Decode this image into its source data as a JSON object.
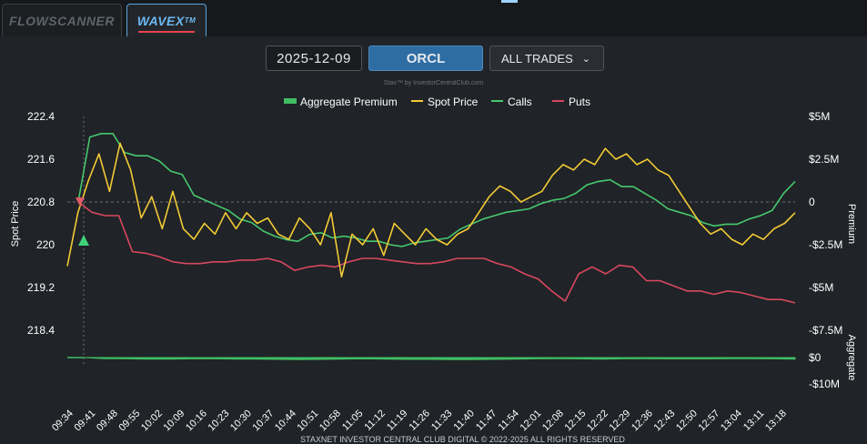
{
  "tabs": [
    {
      "label": "FLOWSCANNER",
      "active": false
    },
    {
      "label": "WAVEX",
      "sup": "TM",
      "active": true
    }
  ],
  "controls": {
    "date": "2025-12-09",
    "ticker": "ORCL",
    "trade_filter": "ALL TRADES"
  },
  "credit": "Stax™ by InvestorCentralClub.com",
  "footer": "STAXNET INVESTOR CENTRAL CLUB DIGITAL © 2022-2025 ALL RIGHTS RESERVED",
  "colors": {
    "aggregate": "#3fbe63",
    "spot": "#f2cb35",
    "calls": "#47c86e",
    "puts": "#d8485f",
    "grid_zero": "#6b7077"
  },
  "chart_data": {
    "type": "line",
    "legend": [
      "Aggregate Premium",
      "Spot Price",
      "Calls",
      "Puts"
    ],
    "left_axis": {
      "label": "Spot Price",
      "ticks": [
        "222.4",
        "221.6",
        "220.8",
        "220",
        "219.2",
        "218.4"
      ],
      "ylim": [
        218.4,
        222.4
      ]
    },
    "right_axis_premium": {
      "label": "Premium",
      "ticks": [
        "$5M",
        "$2.5M",
        "0",
        "-$2.5M",
        "-$5M",
        "-$7.5M"
      ],
      "ylim": [
        -7.5,
        5
      ]
    },
    "right_axis_aggregate": {
      "label": "Aggregate",
      "ticks": [
        "$0",
        "-$10M"
      ],
      "ylim": [
        -10,
        0
      ]
    },
    "x_ticks": [
      "09:34",
      "09:41",
      "09:48",
      "09:55",
      "10:02",
      "10:09",
      "10:16",
      "10:23",
      "10:30",
      "10:37",
      "10:44",
      "10:51",
      "10:58",
      "11:05",
      "11:12",
      "11:19",
      "11:26",
      "11:33",
      "11:40",
      "11:47",
      "11:54",
      "12:01",
      "12:08",
      "12:15",
      "12:22",
      "12:29",
      "12:36",
      "12:43",
      "12:50",
      "12:57",
      "13:04",
      "13:11",
      "13:18"
    ],
    "spot_price": [
      219.6,
      220.6,
      221.2,
      221.7,
      221.0,
      221.9,
      221.4,
      220.5,
      220.9,
      220.3,
      221.0,
      220.3,
      220.1,
      220.4,
      220.2,
      220.6,
      220.3,
      220.6,
      220.4,
      220.5,
      220.2,
      220.1,
      220.5,
      220.3,
      220.0,
      220.6,
      219.4,
      220.2,
      220.0,
      220.3,
      219.8,
      220.4,
      220.2,
      220.0,
      220.3,
      220.1,
      220.0,
      220.2,
      220.3,
      220.6,
      220.9,
      221.1,
      221.0,
      220.8,
      220.9,
      221.0,
      221.3,
      221.5,
      221.4,
      221.6,
      221.5,
      221.8,
      221.6,
      221.7,
      221.5,
      221.6,
      221.4,
      221.3,
      221.0,
      220.7,
      220.4,
      220.2,
      220.3,
      220.1,
      220.0,
      220.2,
      220.1,
      220.3,
      220.4,
      220.6
    ],
    "calls_premium": [
      0,
      3.8,
      4.0,
      4.0,
      2.9,
      2.7,
      2.7,
      2.4,
      1.8,
      1.6,
      0.4,
      0.1,
      -0.2,
      -0.5,
      -1.0,
      -1.2,
      -1.7,
      -2.0,
      -2.2,
      -2.3,
      -1.9,
      -1.8,
      -2.1,
      -2.0,
      -2.1,
      -2.3,
      -2.3,
      -2.5,
      -2.6,
      -2.4,
      -2.3,
      -2.2,
      -2.1,
      -1.6,
      -1.3,
      -1.0,
      -0.8,
      -0.6,
      -0.5,
      -0.4,
      -0.1,
      0.1,
      0.2,
      0.5,
      1.0,
      1.2,
      1.3,
      0.9,
      0.9,
      0.5,
      0.1,
      -0.4,
      -0.6,
      -0.8,
      -1.2,
      -1.4,
      -1.3,
      -1.3,
      -1.0,
      -0.8,
      -0.5,
      0.5,
      1.2
    ],
    "puts_premium": [
      0,
      -0.6,
      -0.8,
      -0.8,
      -2.9,
      -3.0,
      -3.2,
      -3.5,
      -3.6,
      -3.6,
      -3.5,
      -3.5,
      -3.4,
      -3.4,
      -3.3,
      -3.5,
      -4.0,
      -3.8,
      -3.7,
      -3.8,
      -3.5,
      -3.3,
      -3.3,
      -3.4,
      -3.5,
      -3.6,
      -3.6,
      -3.5,
      -3.3,
      -3.3,
      -3.3,
      -3.6,
      -3.8,
      -4.2,
      -4.5,
      -5.2,
      -5.8,
      -4.2,
      -3.8,
      -4.2,
      -3.7,
      -3.8,
      -4.6,
      -4.6,
      -4.9,
      -5.2,
      -5.2,
      -5.4,
      -5.2,
      -5.3,
      -5.5,
      -5.7,
      -5.7,
      -5.9
    ],
    "aggregate_premium": [
      0,
      -0.4,
      -0.5,
      -0.6,
      -0.6,
      -0.5,
      -0.5,
      -0.6,
      -0.6,
      -0.7,
      -0.8,
      -0.7,
      -0.6,
      -0.5,
      -0.6,
      -0.7,
      -0.7,
      -0.8,
      -0.8,
      -0.7,
      -0.6,
      -0.5,
      -0.4,
      -0.5,
      -0.6,
      -0.5,
      -0.4,
      -0.5,
      -0.5,
      -0.5,
      -0.4,
      -0.4,
      -0.5,
      -0.6
    ]
  }
}
